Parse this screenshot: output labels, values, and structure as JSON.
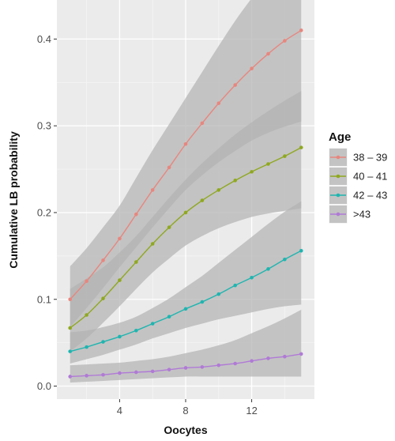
{
  "chart_data": {
    "type": "line",
    "title": "",
    "xlabel": "Oocytes",
    "ylabel": "Cumulative LB probability",
    "xlim": [
      0.2,
      15.8
    ],
    "ylim": [
      -0.015,
      0.445
    ],
    "x_ticks": [
      4,
      8,
      12
    ],
    "x_tick_labels": [
      "4",
      "8",
      "12"
    ],
    "y_ticks": [
      0.0,
      0.1,
      0.2,
      0.3,
      0.4
    ],
    "y_tick_labels": [
      "0.0",
      "0.1",
      "0.2",
      "0.3",
      "0.4"
    ],
    "grid": true,
    "panel_background": "#ebebeb",
    "ribbon_color": "#b3b3b3",
    "legend": {
      "title": "Age",
      "position": "right"
    },
    "x": [
      1,
      2,
      3,
      4,
      5,
      6,
      7,
      8,
      9,
      10,
      11,
      12,
      13,
      14,
      15
    ],
    "series": [
      {
        "name": "38 – 39",
        "color": "#e8867e",
        "values": [
          0.1,
          0.121,
          0.145,
          0.17,
          0.198,
          0.226,
          0.252,
          0.279,
          0.303,
          0.326,
          0.347,
          0.366,
          0.383,
          0.398,
          0.41
        ],
        "lower": [
          0.068,
          0.09,
          0.113,
          0.137,
          0.16,
          0.183,
          0.205,
          0.226,
          0.243,
          0.258,
          0.271,
          0.283,
          0.292,
          0.299,
          0.305
        ],
        "upper": [
          0.138,
          0.159,
          0.183,
          0.208,
          0.24,
          0.272,
          0.302,
          0.332,
          0.362,
          0.392,
          0.421,
          0.447,
          0.47,
          0.491,
          0.51
        ]
      },
      {
        "name": "40 – 41",
        "color": "#8fa81f",
        "values": [
          0.067,
          0.082,
          0.101,
          0.122,
          0.143,
          0.164,
          0.183,
          0.2,
          0.214,
          0.226,
          0.237,
          0.247,
          0.256,
          0.265,
          0.275
        ],
        "lower": [
          0.04,
          0.055,
          0.073,
          0.092,
          0.112,
          0.131,
          0.147,
          0.162,
          0.173,
          0.182,
          0.189,
          0.195,
          0.199,
          0.202,
          0.205
        ],
        "upper": [
          0.112,
          0.124,
          0.137,
          0.154,
          0.173,
          0.195,
          0.217,
          0.238,
          0.257,
          0.274,
          0.29,
          0.304,
          0.317,
          0.329,
          0.34
        ]
      },
      {
        "name": "42 – 43",
        "color": "#1fb5b0",
        "values": [
          0.04,
          0.045,
          0.051,
          0.057,
          0.064,
          0.072,
          0.08,
          0.089,
          0.097,
          0.106,
          0.116,
          0.125,
          0.135,
          0.146,
          0.156
        ],
        "lower": [
          0.026,
          0.031,
          0.036,
          0.042,
          0.048,
          0.055,
          0.061,
          0.067,
          0.072,
          0.077,
          0.081,
          0.085,
          0.089,
          0.092,
          0.094
        ],
        "upper": [
          0.062,
          0.064,
          0.068,
          0.073,
          0.08,
          0.09,
          0.101,
          0.114,
          0.127,
          0.142,
          0.157,
          0.172,
          0.187,
          0.201,
          0.213
        ]
      },
      {
        "name": ">43",
        "color": "#b07ad6",
        "values": [
          0.011,
          0.012,
          0.013,
          0.015,
          0.016,
          0.017,
          0.019,
          0.021,
          0.022,
          0.024,
          0.026,
          0.029,
          0.032,
          0.034,
          0.037
        ],
        "lower": [
          0.004,
          0.005,
          0.006,
          0.007,
          0.008,
          0.009,
          0.01,
          0.011,
          0.011,
          0.011,
          0.011,
          0.011,
          0.011,
          0.011,
          0.011
        ],
        "upper": [
          0.024,
          0.025,
          0.026,
          0.027,
          0.029,
          0.031,
          0.034,
          0.038,
          0.042,
          0.047,
          0.053,
          0.061,
          0.069,
          0.078,
          0.088
        ]
      }
    ]
  }
}
